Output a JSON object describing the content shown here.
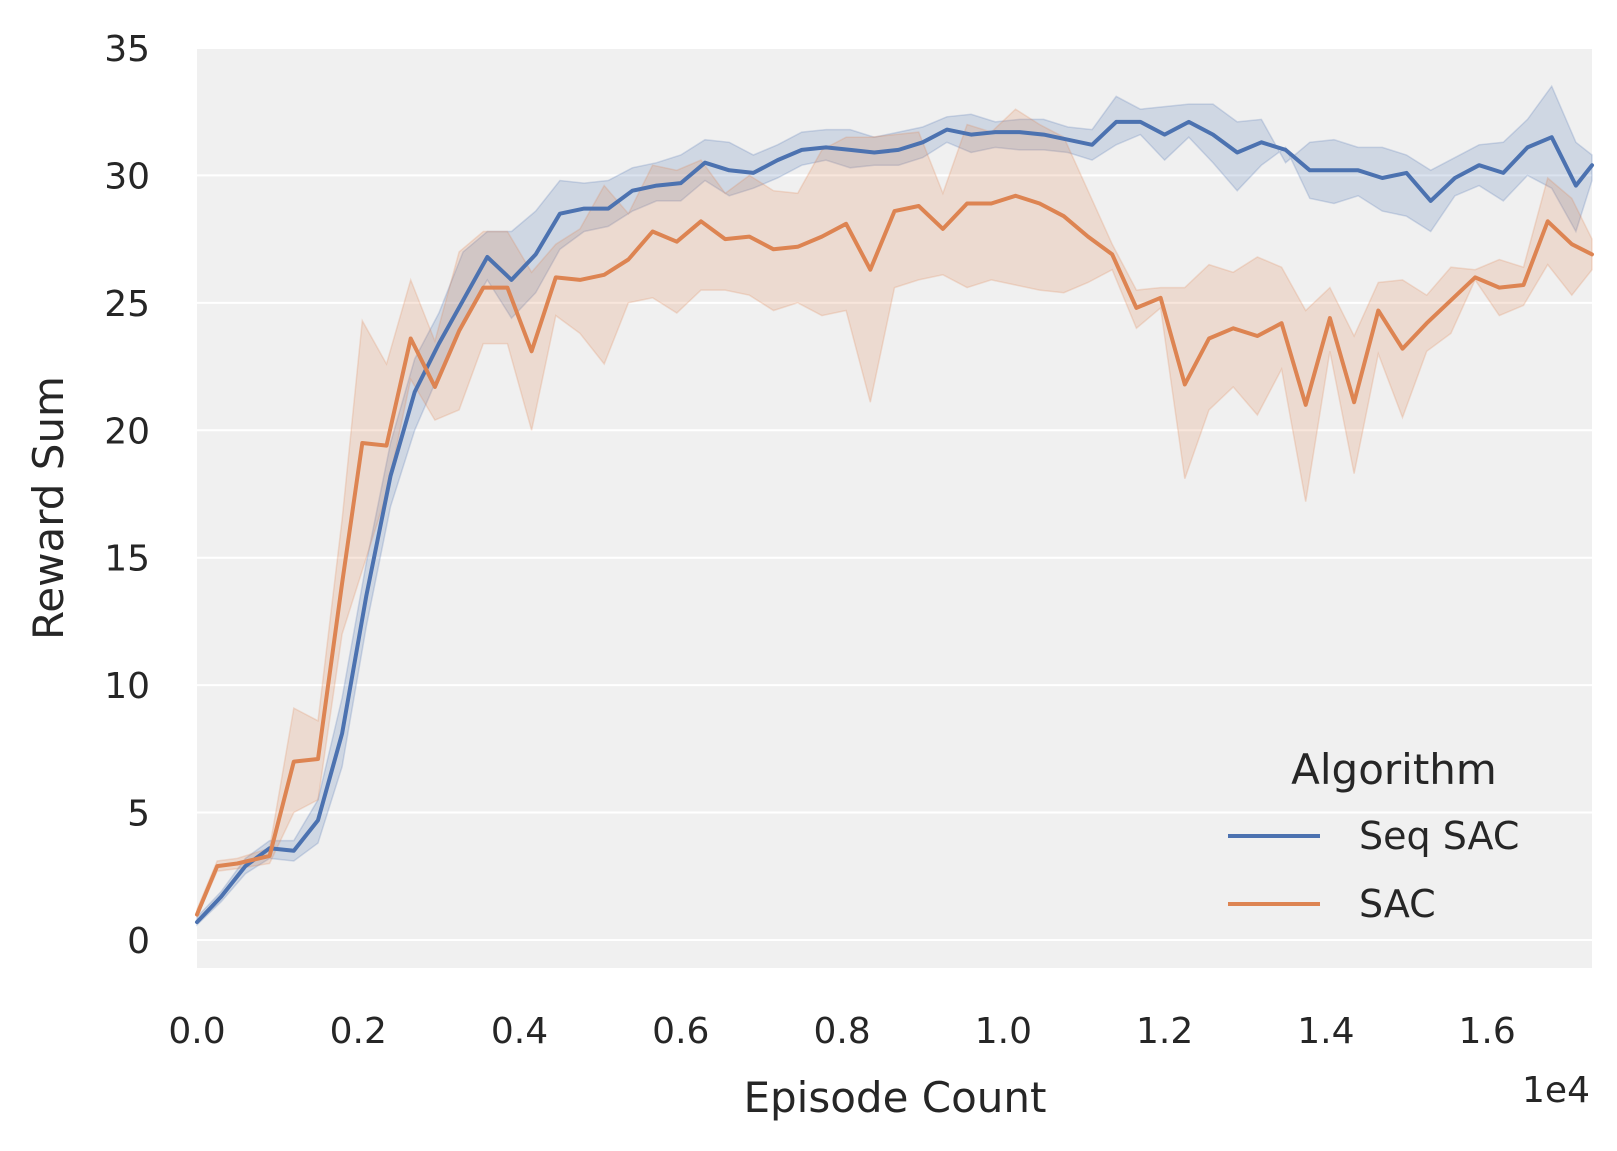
{
  "chart_data": {
    "type": "line",
    "xlabel": "Episode Count",
    "ylabel": "Reward Sum",
    "x_offset_label": "1e4",
    "xlim": [
      0,
      1.73
    ],
    "ylim": [
      -1.1,
      35
    ],
    "x_ticks": [
      0.0,
      0.2,
      0.4,
      0.6,
      0.8,
      1.0,
      1.2,
      1.4,
      1.6
    ],
    "x_tick_labels": [
      "0.0",
      "0.2",
      "0.4",
      "0.6",
      "0.8",
      "1.0",
      "1.2",
      "1.4",
      "1.6"
    ],
    "y_ticks": [
      0,
      5,
      10,
      15,
      20,
      25,
      30,
      35
    ],
    "y_tick_labels": [
      "0",
      "5",
      "10",
      "15",
      "20",
      "25",
      "30",
      "35"
    ],
    "grid": true,
    "background": "#f0f0f0",
    "legend": {
      "title": "Algorithm",
      "placement": "lower-right"
    },
    "series": [
      {
        "name": "Seq SAC",
        "color": "#4c72b0",
        "x": [
          0.0,
          0.03,
          0.06,
          0.09,
          0.12,
          0.15,
          0.18,
          0.21,
          0.24,
          0.27,
          0.3,
          0.33,
          0.36,
          0.39,
          0.42,
          0.45,
          0.48,
          0.51,
          0.54,
          0.57,
          0.6,
          0.63,
          0.66,
          0.69,
          0.72,
          0.75,
          0.78,
          0.81,
          0.84,
          0.87,
          0.9,
          0.93,
          0.96,
          0.99,
          1.02,
          1.05,
          1.08,
          1.11,
          1.14,
          1.17,
          1.2,
          1.23,
          1.26,
          1.29,
          1.32,
          1.35,
          1.38,
          1.41,
          1.44,
          1.47,
          1.5,
          1.53,
          1.56,
          1.59,
          1.62,
          1.65,
          1.68,
          1.71,
          1.73
        ],
        "y": [
          0.7,
          1.7,
          2.9,
          3.6,
          3.5,
          4.7,
          8.1,
          13.5,
          18.2,
          21.5,
          23.4,
          25.1,
          26.8,
          25.9,
          26.9,
          28.5,
          28.7,
          28.7,
          29.4,
          29.6,
          29.7,
          30.5,
          30.2,
          30.1,
          30.6,
          31.0,
          31.1,
          31.0,
          30.9,
          31.0,
          31.3,
          31.8,
          31.6,
          31.7,
          31.7,
          31.6,
          31.4,
          31.2,
          32.1,
          32.1,
          31.6,
          32.1,
          31.6,
          30.9,
          31.3,
          31.0,
          30.2,
          30.2,
          30.2,
          29.9,
          30.1,
          29.0,
          29.9,
          30.4,
          30.1,
          31.1,
          31.5,
          29.6,
          30.4
        ],
        "y_lower": [
          0.6,
          1.5,
          2.6,
          3.2,
          3.1,
          3.8,
          6.8,
          12.3,
          17.0,
          20.0,
          22.2,
          24.3,
          25.9,
          24.4,
          25.4,
          27.1,
          27.8,
          28.0,
          28.6,
          29.0,
          29.0,
          29.8,
          29.2,
          29.5,
          29.9,
          30.4,
          30.6,
          30.3,
          30.4,
          30.4,
          30.7,
          31.3,
          30.9,
          31.1,
          31.0,
          31.0,
          30.9,
          30.6,
          31.2,
          31.6,
          30.6,
          31.5,
          30.5,
          29.4,
          30.4,
          31.1,
          29.1,
          28.9,
          29.2,
          28.6,
          28.4,
          27.8,
          29.2,
          29.6,
          29.0,
          30.0,
          29.5,
          27.8,
          29.8
        ],
        "y_upper": [
          0.9,
          1.9,
          3.2,
          3.9,
          3.9,
          5.5,
          9.5,
          14.8,
          19.5,
          22.8,
          24.6,
          27.0,
          27.8,
          27.8,
          28.6,
          29.8,
          29.7,
          29.8,
          30.3,
          30.5,
          30.8,
          31.4,
          31.3,
          30.8,
          31.2,
          31.7,
          31.8,
          31.8,
          31.5,
          31.7,
          31.9,
          32.3,
          32.4,
          32.1,
          32.2,
          32.2,
          31.9,
          31.8,
          33.1,
          32.6,
          32.7,
          32.8,
          32.8,
          32.1,
          32.2,
          30.5,
          31.3,
          31.4,
          31.1,
          31.1,
          30.8,
          30.2,
          30.7,
          31.2,
          31.3,
          32.2,
          33.5,
          31.3,
          30.8
        ]
      },
      {
        "name": "SAC",
        "color": "#dd8452",
        "x": [
          0.0,
          0.025,
          0.05,
          0.09,
          0.12,
          0.15,
          0.18,
          0.205,
          0.235,
          0.265,
          0.295,
          0.325,
          0.355,
          0.385,
          0.415,
          0.445,
          0.475,
          0.505,
          0.535,
          0.565,
          0.595,
          0.625,
          0.655,
          0.685,
          0.715,
          0.745,
          0.775,
          0.805,
          0.835,
          0.865,
          0.895,
          0.925,
          0.955,
          0.985,
          1.015,
          1.045,
          1.075,
          1.105,
          1.135,
          1.165,
          1.195,
          1.225,
          1.255,
          1.285,
          1.315,
          1.345,
          1.375,
          1.405,
          1.435,
          1.465,
          1.495,
          1.525,
          1.555,
          1.585,
          1.615,
          1.645,
          1.675,
          1.705,
          1.73
        ],
        "y": [
          1.0,
          2.9,
          3.0,
          3.3,
          7.0,
          7.1,
          14.0,
          19.5,
          19.4,
          23.6,
          21.7,
          23.9,
          25.6,
          25.6,
          23.1,
          26.0,
          25.9,
          26.1,
          26.7,
          27.8,
          27.4,
          28.2,
          27.5,
          27.6,
          27.1,
          27.2,
          27.6,
          28.1,
          26.3,
          28.6,
          28.8,
          27.9,
          28.9,
          28.9,
          29.2,
          28.9,
          28.4,
          27.6,
          26.9,
          24.8,
          25.2,
          21.8,
          23.6,
          24.0,
          23.7,
          24.2,
          21.0,
          24.4,
          21.1,
          24.7,
          23.2,
          24.2,
          25.1,
          26.0,
          25.6,
          25.7,
          28.2,
          27.3,
          26.9
        ],
        "y_lower": [
          0.9,
          2.7,
          2.8,
          3.0,
          5.0,
          5.5,
          12.0,
          14.5,
          17.5,
          22.0,
          20.4,
          20.8,
          23.4,
          23.4,
          20.0,
          24.5,
          23.8,
          22.6,
          25.0,
          25.2,
          24.6,
          25.5,
          25.5,
          25.3,
          24.7,
          25.0,
          24.5,
          24.7,
          21.1,
          25.6,
          25.9,
          26.1,
          25.6,
          25.9,
          25.7,
          25.5,
          25.4,
          25.8,
          26.3,
          24.0,
          24.8,
          18.1,
          20.8,
          21.7,
          20.6,
          22.4,
          17.2,
          23.1,
          18.3,
          23.0,
          20.5,
          23.1,
          23.8,
          25.9,
          24.5,
          24.9,
          26.5,
          25.3,
          26.3
        ],
        "y_upper": [
          1.2,
          3.1,
          3.2,
          3.6,
          9.1,
          8.6,
          16.5,
          24.3,
          22.6,
          25.9,
          23.5,
          27.0,
          27.8,
          27.8,
          26.2,
          27.3,
          27.9,
          29.6,
          28.5,
          30.4,
          30.2,
          30.6,
          29.3,
          30.0,
          29.4,
          29.3,
          31.0,
          31.5,
          31.5,
          31.6,
          31.7,
          29.3,
          32.0,
          31.7,
          32.6,
          32.0,
          31.5,
          29.4,
          27.3,
          25.5,
          25.6,
          25.6,
          26.5,
          26.2,
          26.8,
          26.4,
          24.7,
          25.6,
          23.7,
          25.8,
          25.9,
          25.3,
          26.4,
          26.3,
          26.7,
          26.4,
          29.9,
          29.1,
          27.5
        ]
      }
    ]
  }
}
